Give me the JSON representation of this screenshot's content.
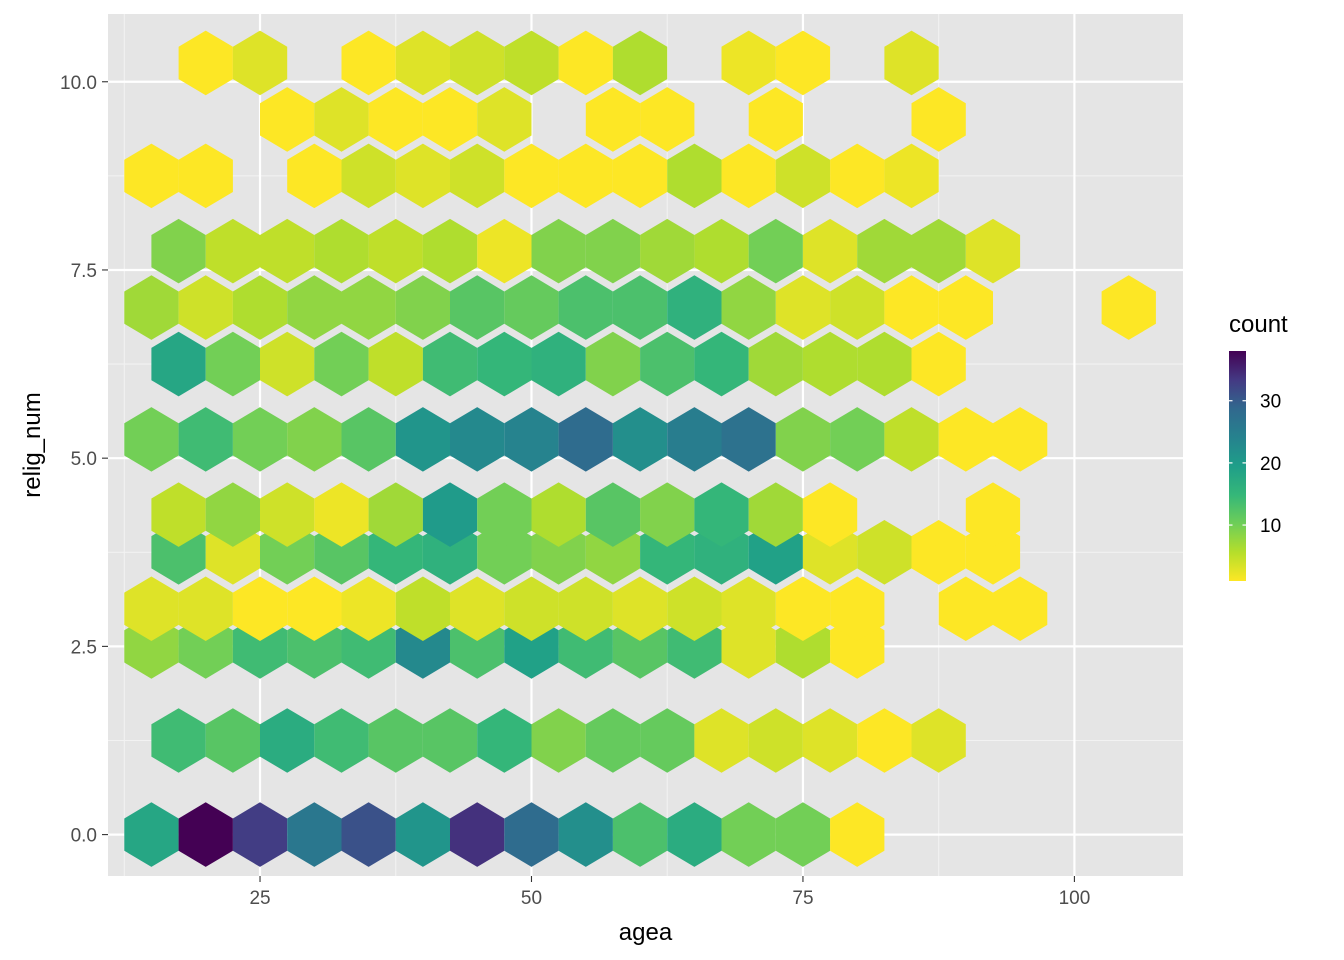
{
  "chart_data": {
    "type": "heatmap",
    "geom": "hexbin",
    "title": "",
    "xlabel": "agea",
    "ylabel": "relig_num",
    "xlim": [
      11.0,
      110.0
    ],
    "ylim": [
      -0.55,
      10.9
    ],
    "x_ticks": [
      25,
      50,
      75,
      100
    ],
    "x_tick_labels": [
      "25",
      "50",
      "75",
      "100"
    ],
    "y_ticks": [
      0.0,
      2.5,
      5.0,
      7.5,
      10.0
    ],
    "y_tick_labels": [
      "0.0",
      "2.5",
      "5.0",
      "7.5",
      "10.0"
    ],
    "hex_width": 5.0,
    "grid": true,
    "legend": {
      "title": "count",
      "position": "right",
      "colormap": "viridis (reversed)",
      "min": 1,
      "max": 38,
      "breaks": [
        10,
        20,
        30
      ],
      "break_labels": [
        "10",
        "20",
        "30"
      ]
    },
    "bins": [
      {
        "x": 15,
        "y": 0,
        "count": 18
      },
      {
        "x": 20,
        "y": 0,
        "count": 38
      },
      {
        "x": 25,
        "y": 0,
        "count": 33
      },
      {
        "x": 30,
        "y": 0,
        "count": 26
      },
      {
        "x": 35,
        "y": 0,
        "count": 31
      },
      {
        "x": 40,
        "y": 0,
        "count": 21
      },
      {
        "x": 45,
        "y": 0,
        "count": 34
      },
      {
        "x": 50,
        "y": 0,
        "count": 28
      },
      {
        "x": 55,
        "y": 0,
        "count": 22
      },
      {
        "x": 60,
        "y": 0,
        "count": 13
      },
      {
        "x": 65,
        "y": 0,
        "count": 17
      },
      {
        "x": 70,
        "y": 0,
        "count": 10
      },
      {
        "x": 75,
        "y": 0,
        "count": 10
      },
      {
        "x": 80,
        "y": 0,
        "count": 1
      },
      {
        "x": 17.5,
        "y": 1.25,
        "count": 14
      },
      {
        "x": 22.5,
        "y": 1.25,
        "count": 12
      },
      {
        "x": 27.5,
        "y": 1.25,
        "count": 17
      },
      {
        "x": 32.5,
        "y": 1.25,
        "count": 14
      },
      {
        "x": 37.5,
        "y": 1.25,
        "count": 12
      },
      {
        "x": 42.5,
        "y": 1.25,
        "count": 12
      },
      {
        "x": 47.5,
        "y": 1.25,
        "count": 15
      },
      {
        "x": 52.5,
        "y": 1.25,
        "count": 9
      },
      {
        "x": 57.5,
        "y": 1.25,
        "count": 11
      },
      {
        "x": 62.5,
        "y": 1.25,
        "count": 11
      },
      {
        "x": 67.5,
        "y": 1.25,
        "count": 3
      },
      {
        "x": 72.5,
        "y": 1.25,
        "count": 4
      },
      {
        "x": 77.5,
        "y": 1.25,
        "count": 3
      },
      {
        "x": 82.5,
        "y": 1.25,
        "count": 1
      },
      {
        "x": 87.5,
        "y": 1.25,
        "count": 3
      },
      {
        "x": 15,
        "y": 2.5,
        "count": 8
      },
      {
        "x": 20,
        "y": 2.5,
        "count": 10
      },
      {
        "x": 25,
        "y": 2.5,
        "count": 14
      },
      {
        "x": 30,
        "y": 2.5,
        "count": 13
      },
      {
        "x": 35,
        "y": 2.5,
        "count": 14
      },
      {
        "x": 40,
        "y": 2.5,
        "count": 23
      },
      {
        "x": 45,
        "y": 2.5,
        "count": 13
      },
      {
        "x": 50,
        "y": 2.5,
        "count": 19
      },
      {
        "x": 55,
        "y": 2.5,
        "count": 14
      },
      {
        "x": 60,
        "y": 2.5,
        "count": 12
      },
      {
        "x": 65,
        "y": 2.5,
        "count": 14
      },
      {
        "x": 70,
        "y": 2.5,
        "count": 3
      },
      {
        "x": 75,
        "y": 2.5,
        "count": 6
      },
      {
        "x": 80,
        "y": 2.5,
        "count": 1
      },
      {
        "x": 17.5,
        "y": 3.75,
        "count": 13
      },
      {
        "x": 22.5,
        "y": 3.75,
        "count": 3
      },
      {
        "x": 27.5,
        "y": 3.75,
        "count": 10
      },
      {
        "x": 32.5,
        "y": 3.75,
        "count": 12
      },
      {
        "x": 37.5,
        "y": 3.75,
        "count": 15
      },
      {
        "x": 42.5,
        "y": 3.75,
        "count": 16
      },
      {
        "x": 47.5,
        "y": 3.75,
        "count": 10
      },
      {
        "x": 52.5,
        "y": 3.75,
        "count": 9
      },
      {
        "x": 57.5,
        "y": 3.75,
        "count": 8
      },
      {
        "x": 62.5,
        "y": 3.75,
        "count": 15
      },
      {
        "x": 67.5,
        "y": 3.75,
        "count": 16
      },
      {
        "x": 72.5,
        "y": 3.75,
        "count": 19
      },
      {
        "x": 77.5,
        "y": 3.75,
        "count": 3
      },
      {
        "x": 82.5,
        "y": 3.75,
        "count": 4
      },
      {
        "x": 87.5,
        "y": 3.75,
        "count": 1
      },
      {
        "x": 92.5,
        "y": 3.75,
        "count": 1
      },
      {
        "x": 15,
        "y": 3.0,
        "count": 3
      },
      {
        "x": 20,
        "y": 3.0,
        "count": 3
      },
      {
        "x": 25,
        "y": 3.0,
        "count": 1
      },
      {
        "x": 30,
        "y": 3.0,
        "count": 1
      },
      {
        "x": 35,
        "y": 3.0,
        "count": 2
      },
      {
        "x": 40,
        "y": 3.0,
        "count": 5
      },
      {
        "x": 45,
        "y": 3.0,
        "count": 3
      },
      {
        "x": 50,
        "y": 3.0,
        "count": 4
      },
      {
        "x": 55,
        "y": 3.0,
        "count": 4
      },
      {
        "x": 60,
        "y": 3.0,
        "count": 3
      },
      {
        "x": 65,
        "y": 3.0,
        "count": 4
      },
      {
        "x": 70,
        "y": 3.0,
        "count": 3
      },
      {
        "x": 75,
        "y": 3.0,
        "count": 1
      },
      {
        "x": 80,
        "y": 3.0,
        "count": 1
      },
      {
        "x": 90,
        "y": 3.0,
        "count": 1
      },
      {
        "x": 95,
        "y": 3.0,
        "count": 1
      },
      {
        "x": 17.5,
        "y": 4.25,
        "count": 5
      },
      {
        "x": 22.5,
        "y": 4.25,
        "count": 8
      },
      {
        "x": 27.5,
        "y": 4.25,
        "count": 4
      },
      {
        "x": 32.5,
        "y": 4.25,
        "count": 2
      },
      {
        "x": 37.5,
        "y": 4.25,
        "count": 7
      },
      {
        "x": 42.5,
        "y": 4.25,
        "count": 20
      },
      {
        "x": 47.5,
        "y": 4.25,
        "count": 10
      },
      {
        "x": 52.5,
        "y": 4.25,
        "count": 6
      },
      {
        "x": 57.5,
        "y": 4.25,
        "count": 12
      },
      {
        "x": 62.5,
        "y": 4.25,
        "count": 9
      },
      {
        "x": 67.5,
        "y": 4.25,
        "count": 15
      },
      {
        "x": 72.5,
        "y": 4.25,
        "count": 7
      },
      {
        "x": 77.5,
        "y": 4.25,
        "count": 1
      },
      {
        "x": 92.5,
        "y": 4.25,
        "count": 1
      },
      {
        "x": 15,
        "y": 5.25,
        "count": 10
      },
      {
        "x": 20,
        "y": 5.25,
        "count": 14
      },
      {
        "x": 25,
        "y": 5.25,
        "count": 10
      },
      {
        "x": 30,
        "y": 5.25,
        "count": 9
      },
      {
        "x": 35,
        "y": 5.25,
        "count": 12
      },
      {
        "x": 40,
        "y": 5.25,
        "count": 21
      },
      {
        "x": 45,
        "y": 5.25,
        "count": 23
      },
      {
        "x": 50,
        "y": 5.25,
        "count": 24
      },
      {
        "x": 55,
        "y": 5.25,
        "count": 28
      },
      {
        "x": 60,
        "y": 5.25,
        "count": 22
      },
      {
        "x": 65,
        "y": 5.25,
        "count": 25
      },
      {
        "x": 70,
        "y": 5.25,
        "count": 27
      },
      {
        "x": 75,
        "y": 5.25,
        "count": 9
      },
      {
        "x": 80,
        "y": 5.25,
        "count": 10
      },
      {
        "x": 85,
        "y": 5.25,
        "count": 5
      },
      {
        "x": 90,
        "y": 5.25,
        "count": 1
      },
      {
        "x": 95,
        "y": 5.25,
        "count": 1
      },
      {
        "x": 17.5,
        "y": 6.25,
        "count": 18
      },
      {
        "x": 22.5,
        "y": 6.25,
        "count": 10
      },
      {
        "x": 27.5,
        "y": 6.25,
        "count": 4
      },
      {
        "x": 32.5,
        "y": 6.25,
        "count": 10
      },
      {
        "x": 37.5,
        "y": 6.25,
        "count": 5
      },
      {
        "x": 42.5,
        "y": 6.25,
        "count": 14
      },
      {
        "x": 47.5,
        "y": 6.25,
        "count": 15
      },
      {
        "x": 52.5,
        "y": 6.25,
        "count": 16
      },
      {
        "x": 57.5,
        "y": 6.25,
        "count": 9
      },
      {
        "x": 62.5,
        "y": 6.25,
        "count": 13
      },
      {
        "x": 67.5,
        "y": 6.25,
        "count": 15
      },
      {
        "x": 72.5,
        "y": 6.25,
        "count": 7
      },
      {
        "x": 77.5,
        "y": 6.25,
        "count": 6
      },
      {
        "x": 82.5,
        "y": 6.25,
        "count": 6
      },
      {
        "x": 87.5,
        "y": 6.25,
        "count": 1
      },
      {
        "x": 15,
        "y": 7.0,
        "count": 7
      },
      {
        "x": 20,
        "y": 7.0,
        "count": 4
      },
      {
        "x": 25,
        "y": 7.0,
        "count": 6
      },
      {
        "x": 30,
        "y": 7.0,
        "count": 8
      },
      {
        "x": 35,
        "y": 7.0,
        "count": 8
      },
      {
        "x": 40,
        "y": 7.0,
        "count": 9
      },
      {
        "x": 45,
        "y": 7.0,
        "count": 12
      },
      {
        "x": 50,
        "y": 7.0,
        "count": 11
      },
      {
        "x": 55,
        "y": 7.0,
        "count": 13
      },
      {
        "x": 60,
        "y": 7.0,
        "count": 13
      },
      {
        "x": 65,
        "y": 7.0,
        "count": 16
      },
      {
        "x": 70,
        "y": 7.0,
        "count": 8
      },
      {
        "x": 75,
        "y": 7.0,
        "count": 3
      },
      {
        "x": 80,
        "y": 7.0,
        "count": 4
      },
      {
        "x": 85,
        "y": 7.0,
        "count": 1
      },
      {
        "x": 90,
        "y": 7.0,
        "count": 1
      },
      {
        "x": 105,
        "y": 7.0,
        "count": 1
      },
      {
        "x": 17.5,
        "y": 7.75,
        "count": 9
      },
      {
        "x": 22.5,
        "y": 7.75,
        "count": 5
      },
      {
        "x": 27.5,
        "y": 7.75,
        "count": 5
      },
      {
        "x": 32.5,
        "y": 7.75,
        "count": 6
      },
      {
        "x": 37.5,
        "y": 7.75,
        "count": 5
      },
      {
        "x": 42.5,
        "y": 7.75,
        "count": 6
      },
      {
        "x": 47.5,
        "y": 7.75,
        "count": 2
      },
      {
        "x": 52.5,
        "y": 7.75,
        "count": 9
      },
      {
        "x": 57.5,
        "y": 7.75,
        "count": 9
      },
      {
        "x": 62.5,
        "y": 7.75,
        "count": 7
      },
      {
        "x": 67.5,
        "y": 7.75,
        "count": 6
      },
      {
        "x": 72.5,
        "y": 7.75,
        "count": 10
      },
      {
        "x": 77.5,
        "y": 7.75,
        "count": 3
      },
      {
        "x": 82.5,
        "y": 7.75,
        "count": 7
      },
      {
        "x": 87.5,
        "y": 7.75,
        "count": 7
      },
      {
        "x": 92.5,
        "y": 7.75,
        "count": 3
      },
      {
        "x": 15,
        "y": 8.75,
        "count": 1
      },
      {
        "x": 20,
        "y": 8.75,
        "count": 1
      },
      {
        "x": 30,
        "y": 8.75,
        "count": 1
      },
      {
        "x": 35,
        "y": 8.75,
        "count": 4
      },
      {
        "x": 40,
        "y": 8.75,
        "count": 3
      },
      {
        "x": 45,
        "y": 8.75,
        "count": 4
      },
      {
        "x": 50,
        "y": 8.75,
        "count": 1
      },
      {
        "x": 55,
        "y": 8.75,
        "count": 1
      },
      {
        "x": 60,
        "y": 8.75,
        "count": 1
      },
      {
        "x": 65,
        "y": 8.75,
        "count": 6
      },
      {
        "x": 70,
        "y": 8.75,
        "count": 1
      },
      {
        "x": 75,
        "y": 8.75,
        "count": 4
      },
      {
        "x": 80,
        "y": 8.75,
        "count": 1
      },
      {
        "x": 85,
        "y": 8.75,
        "count": 2
      },
      {
        "x": 27.5,
        "y": 9.5,
        "count": 1
      },
      {
        "x": 32.5,
        "y": 9.5,
        "count": 3
      },
      {
        "x": 37.5,
        "y": 9.5,
        "count": 1
      },
      {
        "x": 42.5,
        "y": 9.5,
        "count": 1
      },
      {
        "x": 47.5,
        "y": 9.5,
        "count": 3
      },
      {
        "x": 57.5,
        "y": 9.5,
        "count": 1
      },
      {
        "x": 62.5,
        "y": 9.5,
        "count": 1
      },
      {
        "x": 72.5,
        "y": 9.5,
        "count": 1
      },
      {
        "x": 87.5,
        "y": 9.5,
        "count": 1
      },
      {
        "x": 20,
        "y": 10.25,
        "count": 1
      },
      {
        "x": 25,
        "y": 10.25,
        "count": 3
      },
      {
        "x": 35,
        "y": 10.25,
        "count": 1
      },
      {
        "x": 40,
        "y": 10.25,
        "count": 3
      },
      {
        "x": 45,
        "y": 10.25,
        "count": 4
      },
      {
        "x": 50,
        "y": 10.25,
        "count": 5
      },
      {
        "x": 55,
        "y": 10.25,
        "count": 1
      },
      {
        "x": 60,
        "y": 10.25,
        "count": 6
      },
      {
        "x": 70,
        "y": 10.25,
        "count": 2
      },
      {
        "x": 75,
        "y": 10.25,
        "count": 1
      },
      {
        "x": 85,
        "y": 10.25,
        "count": 3
      }
    ]
  }
}
